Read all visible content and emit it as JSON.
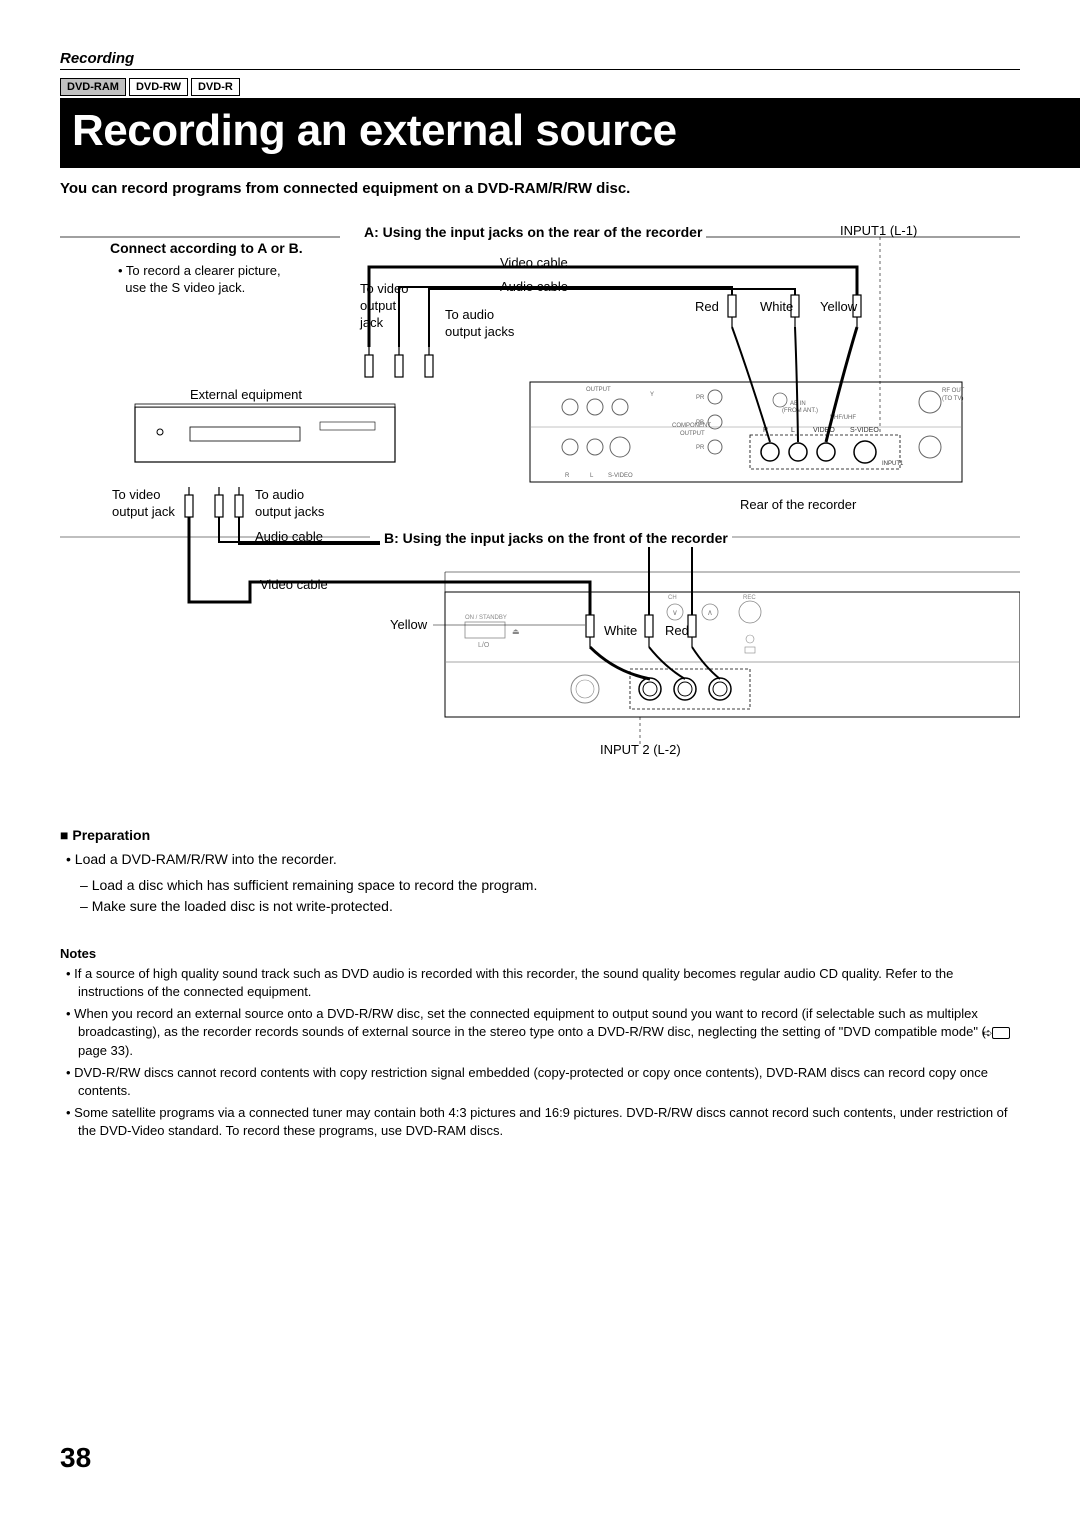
{
  "section": "Recording",
  "badges": [
    "DVD-RAM",
    "DVD-RW",
    "DVD-R"
  ],
  "title": "Recording an external source",
  "lede": "You can record programs from connected equipment on a DVD-RAM/R/RW disc.",
  "diagram": {
    "connect_label": "Connect according to A or B.",
    "svideo_note": "• To record a clearer picture,\n  use the S video jack.",
    "method_a": "A: Using the input jacks on the rear of the recorder",
    "method_b": "B: Using the input jacks on the front of the recorder",
    "input1": "INPUT1 (L-1)",
    "input2": "INPUT 2 (L-2)",
    "video_cable": "Video cable",
    "audio_cable": "Audio cable",
    "to_video_out": "To video\noutput\njack",
    "to_audio_out": "To audio\noutput jacks",
    "red": "Red",
    "white": "White",
    "yellow": "Yellow",
    "external_equip": "External equipment",
    "rear_label": "Rear of the recorder",
    "to_video_out2": "To video\noutput jack",
    "to_audio_out2": "To audio\noutput jacks"
  },
  "preparation": {
    "heading": "Preparation",
    "items": [
      "Load a DVD-RAM/R/RW into the recorder."
    ],
    "subitems": [
      "Load a disc which has sufficient remaining space to record the program.",
      "Make sure the loaded disc is not write-protected."
    ]
  },
  "notes": {
    "heading": "Notes",
    "items": [
      "If a source of high quality sound track such as DVD audio is recorded with this recorder, the sound quality becomes regular audio CD quality. Refer to the instructions of the connected equipment.",
      "When you record an external source onto a DVD-R/RW disc, set the connected equipment to output sound you want to record (if selectable such as multiplex broadcasting), as the recorder records sounds of external source in the stereo type onto a DVD-R/RW disc, neglecting the setting of \"DVD compatible mode\" (         page 33).",
      "DVD-R/RW discs cannot record contents with copy restriction signal embedded (copy-protected or copy once contents), DVD-RAM discs can record copy once contents.",
      "Some satellite programs via a connected tuner may contain both 4:3 pictures and 16:9 pictures. DVD-R/RW discs cannot record such contents, under restriction of the DVD-Video standard. To record these programs, use DVD-RAM discs."
    ]
  },
  "page_number": "38"
}
